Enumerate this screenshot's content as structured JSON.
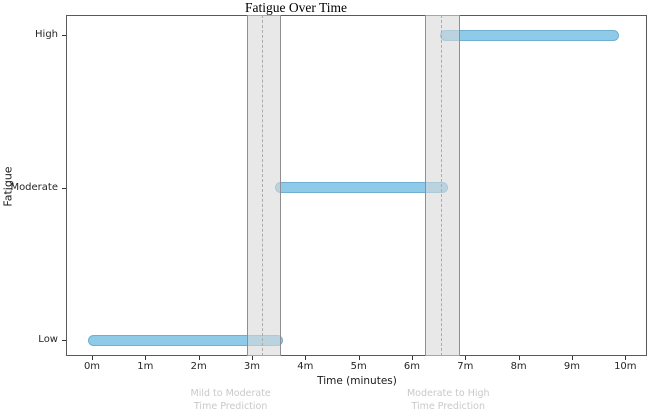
{
  "chart_data": {
    "type": "bar",
    "orientation": "horizontal_timeline",
    "title": "Fatigue Over Time",
    "xlabel": "Time (minutes)",
    "ylabel": "Fatigue",
    "categories": [
      "Low",
      "Moderate",
      "High"
    ],
    "x_ticks": [
      {
        "min": 0,
        "label": "0m"
      },
      {
        "min": 1,
        "label": "1m"
      },
      {
        "min": 2,
        "label": "2m"
      },
      {
        "min": 3,
        "label": "3m"
      },
      {
        "min": 4,
        "label": "4m"
      },
      {
        "min": 5,
        "label": "5m"
      },
      {
        "min": 6,
        "label": "6m"
      },
      {
        "min": 7,
        "label": "7m"
      },
      {
        "min": 8,
        "label": "8m"
      },
      {
        "min": 9,
        "label": "9m"
      },
      {
        "min": 10,
        "label": "10m"
      }
    ],
    "xlim_minutes": [
      -0.5,
      10.4
    ],
    "bars": [
      {
        "category": "Low",
        "start_min": 0.0,
        "end_min": 3.5
      },
      {
        "category": "Moderate",
        "start_min": 3.5,
        "end_min": 6.6
      },
      {
        "category": "High",
        "start_min": 6.6,
        "end_min": 9.8
      }
    ],
    "predictions": [
      {
        "line1": "Mild to Moderate",
        "line2": "Time Prediction",
        "line_min": 3.2,
        "band_min": [
          2.9,
          3.55
        ],
        "text_center_min": 2.6
      },
      {
        "line1": "Moderate to High",
        "line2": "Time Prediction",
        "line_min": 6.55,
        "band_min": [
          6.25,
          6.9
        ],
        "text_center_min": 6.68
      }
    ],
    "legend": null,
    "grid": false,
    "colors": {
      "bar_fill": "#8FCAE8",
      "bar_edge": "#6FAFD2",
      "band_fill": "#E7E7E7",
      "band_edge": "#8F8F8F",
      "dashed_line": "#ABABAB",
      "annotation_text": "#C9C9C9"
    }
  }
}
